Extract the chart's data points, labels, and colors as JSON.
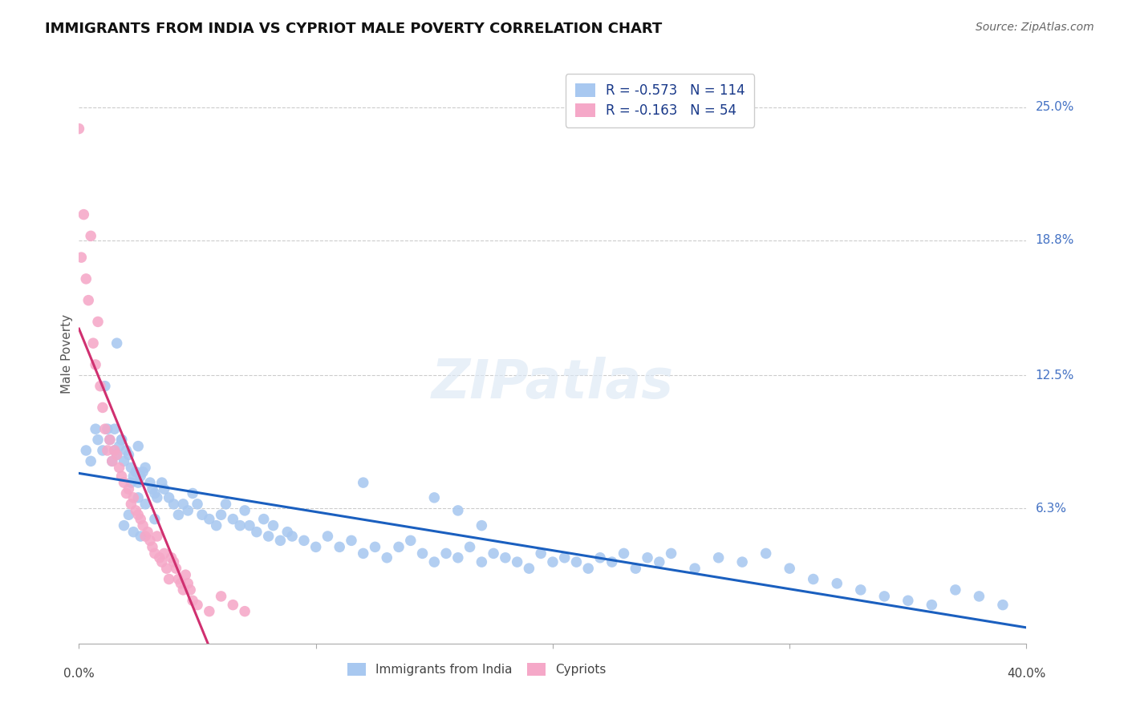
{
  "title": "IMMIGRANTS FROM INDIA VS CYPRIOT MALE POVERTY CORRELATION CHART",
  "source": "Source: ZipAtlas.com",
  "ylabel": "Male Poverty",
  "ytick_labels": [
    "25.0%",
    "18.8%",
    "12.5%",
    "6.3%"
  ],
  "ytick_values": [
    0.25,
    0.188,
    0.125,
    0.063
  ],
  "xmin": 0.0,
  "xmax": 0.4,
  "ymin": 0.0,
  "ymax": 0.27,
  "color_blue": "#a8c8f0",
  "color_pink": "#f5a8c8",
  "trendline_blue": "#1a5fbf",
  "trendline_pink": "#d03070",
  "trendline_pink_dashed_color": "#f0b8d0",
  "legend_r_blue": "-0.573",
  "legend_n_blue": "114",
  "legend_r_pink": "-0.163",
  "legend_n_pink": "54",
  "india_x": [
    0.003,
    0.005,
    0.007,
    0.008,
    0.01,
    0.011,
    0.012,
    0.013,
    0.014,
    0.015,
    0.015,
    0.016,
    0.017,
    0.018,
    0.019,
    0.02,
    0.021,
    0.022,
    0.023,
    0.024,
    0.025,
    0.025,
    0.026,
    0.027,
    0.028,
    0.03,
    0.031,
    0.032,
    0.033,
    0.035,
    0.036,
    0.038,
    0.04,
    0.042,
    0.044,
    0.046,
    0.048,
    0.05,
    0.052,
    0.055,
    0.058,
    0.06,
    0.062,
    0.065,
    0.068,
    0.07,
    0.072,
    0.075,
    0.078,
    0.08,
    0.082,
    0.085,
    0.088,
    0.09,
    0.095,
    0.1,
    0.105,
    0.11,
    0.115,
    0.12,
    0.125,
    0.13,
    0.135,
    0.14,
    0.145,
    0.15,
    0.155,
    0.16,
    0.165,
    0.17,
    0.175,
    0.18,
    0.185,
    0.19,
    0.195,
    0.2,
    0.205,
    0.21,
    0.215,
    0.22,
    0.225,
    0.23,
    0.235,
    0.24,
    0.245,
    0.25,
    0.26,
    0.27,
    0.28,
    0.29,
    0.3,
    0.31,
    0.32,
    0.33,
    0.34,
    0.35,
    0.36,
    0.37,
    0.38,
    0.39,
    0.016,
    0.018,
    0.022,
    0.025,
    0.028,
    0.032,
    0.12,
    0.15,
    0.16,
    0.17,
    0.019,
    0.021,
    0.023,
    0.026
  ],
  "india_y": [
    0.09,
    0.085,
    0.1,
    0.095,
    0.09,
    0.12,
    0.1,
    0.095,
    0.085,
    0.09,
    0.1,
    0.088,
    0.092,
    0.095,
    0.085,
    0.09,
    0.088,
    0.082,
    0.078,
    0.08,
    0.075,
    0.092,
    0.078,
    0.08,
    0.082,
    0.075,
    0.072,
    0.07,
    0.068,
    0.075,
    0.072,
    0.068,
    0.065,
    0.06,
    0.065,
    0.062,
    0.07,
    0.065,
    0.06,
    0.058,
    0.055,
    0.06,
    0.065,
    0.058,
    0.055,
    0.062,
    0.055,
    0.052,
    0.058,
    0.05,
    0.055,
    0.048,
    0.052,
    0.05,
    0.048,
    0.045,
    0.05,
    0.045,
    0.048,
    0.042,
    0.045,
    0.04,
    0.045,
    0.048,
    0.042,
    0.038,
    0.042,
    0.04,
    0.045,
    0.038,
    0.042,
    0.04,
    0.038,
    0.035,
    0.042,
    0.038,
    0.04,
    0.038,
    0.035,
    0.04,
    0.038,
    0.042,
    0.035,
    0.04,
    0.038,
    0.042,
    0.035,
    0.04,
    0.038,
    0.042,
    0.035,
    0.03,
    0.028,
    0.025,
    0.022,
    0.02,
    0.018,
    0.025,
    0.022,
    0.018,
    0.14,
    0.095,
    0.075,
    0.068,
    0.065,
    0.058,
    0.075,
    0.068,
    0.062,
    0.055,
    0.055,
    0.06,
    0.052,
    0.05
  ],
  "cypriot_x": [
    0.0,
    0.001,
    0.002,
    0.003,
    0.004,
    0.005,
    0.006,
    0.007,
    0.008,
    0.009,
    0.01,
    0.011,
    0.012,
    0.013,
    0.014,
    0.015,
    0.016,
    0.017,
    0.018,
    0.019,
    0.02,
    0.021,
    0.022,
    0.023,
    0.024,
    0.025,
    0.026,
    0.027,
    0.028,
    0.029,
    0.03,
    0.031,
    0.032,
    0.033,
    0.034,
    0.035,
    0.036,
    0.037,
    0.038,
    0.039,
    0.04,
    0.041,
    0.042,
    0.043,
    0.044,
    0.045,
    0.046,
    0.047,
    0.048,
    0.05,
    0.055,
    0.06,
    0.065,
    0.07
  ],
  "cypriot_y": [
    0.24,
    0.18,
    0.2,
    0.17,
    0.16,
    0.19,
    0.14,
    0.13,
    0.15,
    0.12,
    0.11,
    0.1,
    0.09,
    0.095,
    0.085,
    0.09,
    0.088,
    0.082,
    0.078,
    0.075,
    0.07,
    0.072,
    0.065,
    0.068,
    0.062,
    0.06,
    0.058,
    0.055,
    0.05,
    0.052,
    0.048,
    0.045,
    0.042,
    0.05,
    0.04,
    0.038,
    0.042,
    0.035,
    0.03,
    0.04,
    0.038,
    0.035,
    0.03,
    0.028,
    0.025,
    0.032,
    0.028,
    0.025,
    0.02,
    0.018,
    0.015,
    0.022,
    0.018,
    0.015
  ]
}
